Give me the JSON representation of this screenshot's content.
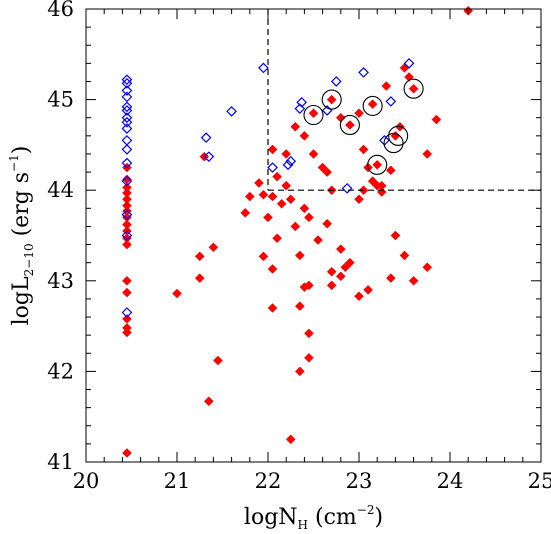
{
  "chart_data": {
    "type": "scatter",
    "xlabel": {
      "base": "logN",
      "sub": "H",
      "unit_pre": " (cm",
      "unit_sup": "−2",
      "unit_post": ")"
    },
    "ylabel": {
      "base": "logL",
      "sub": "2−10",
      "unit_pre": " (erg s",
      "unit_sup": "−1",
      "unit_post": ")"
    },
    "xlim": [
      20,
      25
    ],
    "ylim": [
      41,
      46
    ],
    "xticks": [
      "20",
      "21",
      "22",
      "23",
      "24",
      "25"
    ],
    "yticks": [
      "41",
      "42",
      "43",
      "44",
      "45",
      "46"
    ],
    "grid": false,
    "region": {
      "x0": 22,
      "y0": 44,
      "style": "dashed"
    },
    "series": [
      {
        "marker": "filled-diamond",
        "color": "#ff0000",
        "points": [
          [
            20.45,
            44.25
          ],
          [
            20.45,
            44.12
          ],
          [
            20.45,
            44.03
          ],
          [
            20.45,
            43.97
          ],
          [
            20.45,
            43.9
          ],
          [
            20.45,
            43.83
          ],
          [
            20.45,
            43.77
          ],
          [
            20.45,
            43.7
          ],
          [
            20.45,
            43.62
          ],
          [
            20.45,
            43.55
          ],
          [
            20.45,
            43.47
          ],
          [
            20.45,
            43.4
          ],
          [
            20.45,
            43.0
          ],
          [
            20.45,
            42.87
          ],
          [
            20.45,
            42.58
          ],
          [
            20.45,
            42.48
          ],
          [
            20.45,
            42.43
          ],
          [
            20.45,
            41.1
          ],
          [
            21.0,
            42.86
          ],
          [
            21.25,
            43.27
          ],
          [
            21.25,
            43.03
          ],
          [
            21.35,
            41.67
          ],
          [
            21.4,
            43.37
          ],
          [
            21.3,
            44.37
          ],
          [
            21.45,
            42.12
          ],
          [
            21.75,
            43.75
          ],
          [
            21.8,
            43.93
          ],
          [
            21.9,
            44.08
          ],
          [
            21.95,
            43.27
          ],
          [
            21.95,
            43.95
          ],
          [
            22.0,
            43.7
          ],
          [
            22.05,
            44.45
          ],
          [
            22.05,
            43.93
          ],
          [
            22.05,
            43.13
          ],
          [
            22.05,
            42.7
          ],
          [
            22.1,
            44.15
          ],
          [
            22.1,
            43.47
          ],
          [
            22.15,
            43.85
          ],
          [
            22.2,
            44.4
          ],
          [
            22.2,
            44.05
          ],
          [
            22.25,
            41.25
          ],
          [
            22.25,
            43.9
          ],
          [
            22.3,
            43.6
          ],
          [
            22.3,
            44.7
          ],
          [
            22.35,
            42.72
          ],
          [
            22.35,
            43.28
          ],
          [
            22.35,
            42.0
          ],
          [
            22.4,
            44.6
          ],
          [
            22.4,
            43.8
          ],
          [
            22.4,
            42.93
          ],
          [
            22.45,
            43.7
          ],
          [
            22.45,
            42.95
          ],
          [
            22.45,
            42.42
          ],
          [
            22.45,
            42.15
          ],
          [
            22.5,
            44.85
          ],
          [
            22.5,
            44.4
          ],
          [
            22.55,
            43.45
          ],
          [
            22.6,
            44.25
          ],
          [
            22.65,
            44.2
          ],
          [
            22.65,
            43.63
          ],
          [
            22.7,
            45.0
          ],
          [
            22.7,
            44.0
          ],
          [
            22.7,
            43.1
          ],
          [
            22.7,
            42.95
          ],
          [
            22.8,
            44.8
          ],
          [
            22.8,
            43.35
          ],
          [
            22.8,
            43.05
          ],
          [
            22.85,
            43.15
          ],
          [
            22.9,
            44.72
          ],
          [
            22.9,
            43.2
          ],
          [
            23.0,
            44.85
          ],
          [
            23.0,
            43.9
          ],
          [
            23.0,
            42.83
          ],
          [
            23.05,
            44.0
          ],
          [
            23.05,
            44.45
          ],
          [
            23.1,
            44.25
          ],
          [
            23.1,
            42.9
          ],
          [
            23.15,
            44.95
          ],
          [
            23.15,
            44.1
          ],
          [
            23.2,
            44.05
          ],
          [
            23.2,
            44.28
          ],
          [
            23.25,
            44.05
          ],
          [
            23.25,
            43.98
          ],
          [
            23.3,
            45.15
          ],
          [
            23.35,
            44.22
          ],
          [
            23.35,
            43.03
          ],
          [
            23.4,
            44.6
          ],
          [
            23.4,
            43.5
          ],
          [
            23.45,
            44.7
          ],
          [
            23.5,
            45.35
          ],
          [
            23.5,
            43.28
          ],
          [
            23.55,
            45.25
          ],
          [
            23.6,
            45.12
          ],
          [
            23.6,
            43.0
          ],
          [
            23.75,
            44.4
          ],
          [
            23.75,
            43.15
          ],
          [
            23.85,
            44.78
          ],
          [
            24.2,
            45.98
          ]
        ]
      },
      {
        "marker": "open-diamond",
        "color": "#0000ff",
        "points": [
          [
            20.45,
            45.22
          ],
          [
            20.45,
            45.18
          ],
          [
            20.45,
            45.1
          ],
          [
            20.45,
            45.03
          ],
          [
            20.45,
            44.92
          ],
          [
            20.45,
            44.88
          ],
          [
            20.45,
            44.8
          ],
          [
            20.45,
            44.75
          ],
          [
            20.45,
            44.68
          ],
          [
            20.45,
            44.55
          ],
          [
            20.45,
            44.45
          ],
          [
            20.45,
            44.3
          ],
          [
            20.45,
            44.1
          ],
          [
            20.45,
            43.73
          ],
          [
            20.45,
            43.5
          ],
          [
            20.45,
            42.65
          ],
          [
            21.32,
            44.58
          ],
          [
            21.35,
            44.37
          ],
          [
            21.6,
            44.87
          ],
          [
            21.95,
            45.35
          ],
          [
            22.05,
            44.25
          ],
          [
            22.22,
            44.28
          ],
          [
            22.25,
            44.32
          ],
          [
            22.35,
            44.9
          ],
          [
            22.37,
            44.97
          ],
          [
            22.65,
            44.88
          ],
          [
            22.75,
            45.2
          ],
          [
            22.87,
            44.02
          ],
          [
            23.05,
            45.3
          ],
          [
            23.28,
            44.55
          ],
          [
            23.35,
            44.98
          ],
          [
            23.55,
            45.4
          ]
        ]
      },
      {
        "marker": "open-circle",
        "color": "#000000",
        "points": [
          [
            22.5,
            44.83
          ],
          [
            22.7,
            45.0
          ],
          [
            22.9,
            44.72
          ],
          [
            23.15,
            44.93
          ],
          [
            23.2,
            44.28
          ],
          [
            23.38,
            44.52
          ],
          [
            23.43,
            44.6
          ],
          [
            23.6,
            45.12
          ]
        ]
      }
    ]
  }
}
